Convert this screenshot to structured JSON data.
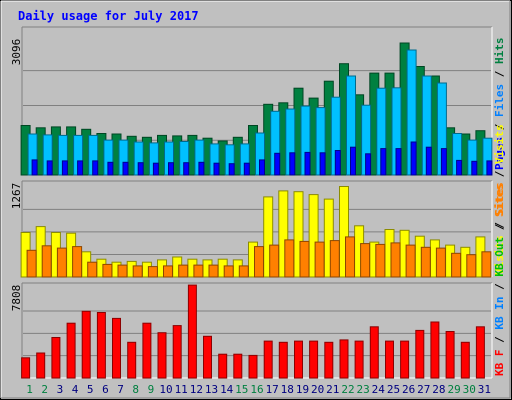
{
  "chart_data": [
    {
      "type": "bar",
      "title": "Daily usage for July 2017",
      "categories": [
        "1",
        "2",
        "3",
        "4",
        "5",
        "6",
        "7",
        "8",
        "9",
        "10",
        "11",
        "12",
        "13",
        "14",
        "15",
        "16",
        "17",
        "18",
        "19",
        "20",
        "21",
        "22",
        "23",
        "24",
        "25",
        "26",
        "27",
        "28",
        "29",
        "30",
        "31"
      ],
      "weekend_days": [
        "1",
        "2",
        "8",
        "9",
        "15",
        "16",
        "22",
        "23",
        "29",
        "30"
      ],
      "ylabel_max": "3096",
      "ylim": [
        0,
        3096
      ],
      "grid": true,
      "legend": [
        "Pages",
        "Files",
        "Hits"
      ],
      "series": [
        {
          "name": "Hits",
          "color": "#008040",
          "values": [
            1050,
            1000,
            1020,
            1020,
            970,
            880,
            870,
            820,
            800,
            840,
            830,
            840,
            780,
            720,
            800,
            1050,
            1500,
            1530,
            1840,
            1630,
            1990,
            2360,
            1700,
            2160,
            2160,
            2800,
            2300,
            2100,
            1000,
            870,
            940
          ]
        },
        {
          "name": "Files",
          "color": "#00c0ff",
          "values": [
            870,
            850,
            840,
            840,
            840,
            740,
            740,
            700,
            680,
            700,
            710,
            740,
            660,
            640,
            660,
            890,
            1350,
            1400,
            1460,
            1430,
            1650,
            2100,
            1480,
            1840,
            1850,
            2650,
            2100,
            1950,
            880,
            740,
            780
          ]
        },
        {
          "name": "Pages",
          "color": "#0000ff",
          "values": [
            320,
            300,
            300,
            300,
            300,
            270,
            270,
            260,
            250,
            260,
            260,
            270,
            250,
            240,
            250,
            320,
            460,
            470,
            480,
            470,
            520,
            590,
            450,
            560,
            560,
            700,
            590,
            560,
            310,
            290,
            300
          ]
        }
      ]
    },
    {
      "type": "bar",
      "categories": [
        "1",
        "2",
        "3",
        "4",
        "5",
        "6",
        "7",
        "8",
        "9",
        "10",
        "11",
        "12",
        "13",
        "14",
        "15",
        "16",
        "17",
        "18",
        "19",
        "20",
        "21",
        "22",
        "23",
        "24",
        "25",
        "26",
        "27",
        "28",
        "29",
        "30",
        "31"
      ],
      "ylabel_max": "1267",
      "ylim": [
        0,
        1267
      ],
      "grid": true,
      "legend": [
        "Visits",
        "Sites"
      ],
      "series": [
        {
          "name": "Visits",
          "color": "#ffff00",
          "values": [
            600,
            680,
            600,
            590,
            340,
            240,
            200,
            210,
            200,
            230,
            270,
            240,
            230,
            240,
            230,
            470,
            1080,
            1160,
            1150,
            1110,
            1050,
            1220,
            690,
            470,
            640,
            630,
            550,
            500,
            430,
            400,
            540
          ]
        },
        {
          "name": "Sites",
          "color": "#ff8000",
          "values": [
            360,
            420,
            390,
            410,
            200,
            170,
            160,
            150,
            140,
            150,
            160,
            160,
            160,
            150,
            150,
            410,
            430,
            500,
            480,
            470,
            490,
            540,
            450,
            440,
            460,
            430,
            400,
            390,
            320,
            300,
            340
          ]
        }
      ]
    },
    {
      "type": "bar",
      "categories": [
        "1",
        "2",
        "3",
        "4",
        "5",
        "6",
        "7",
        "8",
        "9",
        "10",
        "11",
        "12",
        "13",
        "14",
        "15",
        "16",
        "17",
        "18",
        "19",
        "20",
        "21",
        "22",
        "23",
        "24",
        "25",
        "26",
        "27",
        "28",
        "29",
        "30",
        "31"
      ],
      "ylabel_max": "7808",
      "ylim": [
        0,
        7808
      ],
      "grid": true,
      "legend": [
        "KB F",
        "KB In",
        "KB Out",
        "Sites",
        "Visits"
      ],
      "legend_colors": {
        "KB F": "#ff0000",
        "KB In": "#0080ff",
        "KB Out": "#00c000",
        "Sites": "#ff8000",
        "Visits": "#ffff00"
      },
      "series": [
        {
          "name": "KB F",
          "color": "#ff0000",
          "values": [
            1700,
            2100,
            3400,
            4600,
            5600,
            5500,
            5000,
            3000,
            4600,
            3800,
            4400,
            7800,
            3500,
            2000,
            2000,
            1900,
            3100,
            3000,
            3100,
            3100,
            3000,
            3200,
            3100,
            4300,
            3100,
            3100,
            4000,
            4700,
            3900,
            3000,
            4300
          ]
        }
      ]
    }
  ]
}
